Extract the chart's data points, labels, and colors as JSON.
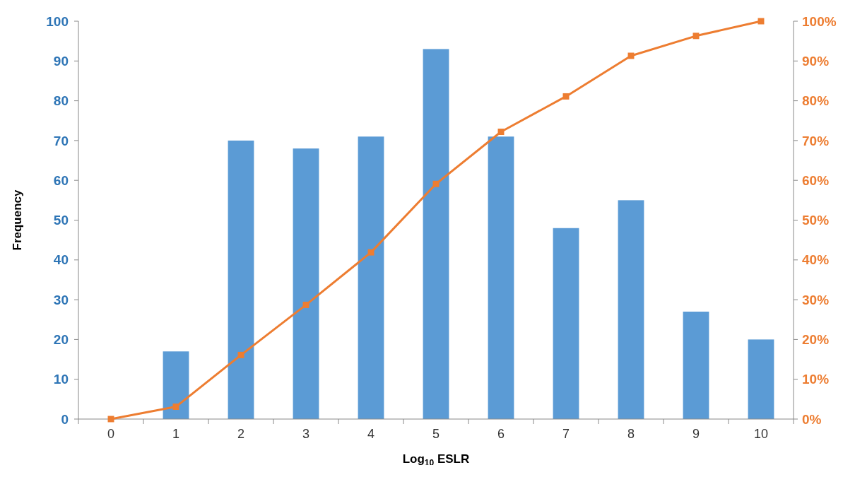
{
  "chart_data": {
    "type": "bar",
    "xlabel": "Log$_{10}$ ESLR",
    "ylabel": "Frequency",
    "categories": [
      "0",
      "1",
      "2",
      "3",
      "4",
      "5",
      "6",
      "7",
      "8",
      "9",
      "10"
    ],
    "series": [
      {
        "color": "#5b9bd5",
        "values": [
          0,
          17,
          70,
          68,
          71,
          93,
          71,
          48,
          55,
          27,
          20
        ]
      },
      {
        "type": "line",
        "axis": "y2",
        "color": "#ed7d31",
        "marker": "square",
        "values": [
          0,
          3.1,
          16.1,
          28.7,
          41.9,
          59.1,
          72.2,
          81.1,
          91.3,
          96.3,
          100
        ]
      }
    ],
    "ylim": [
      0,
      100
    ],
    "yticks": [
      0,
      10,
      20,
      30,
      40,
      50,
      60,
      70,
      80,
      90,
      100
    ],
    "y2lim": [
      0,
      100
    ],
    "y2ticks": [
      {
        "value": 0,
        "label": "0%"
      },
      {
        "value": 10,
        "label": "10%"
      },
      {
        "value": 20,
        "label": "20%"
      },
      {
        "value": 30,
        "label": "30%"
      },
      {
        "value": 40,
        "label": "40%"
      },
      {
        "value": 50,
        "label": "50%"
      },
      {
        "value": 60,
        "label": "60%"
      },
      {
        "value": 70,
        "label": "70%"
      },
      {
        "value": 80,
        "label": "80%"
      },
      {
        "value": 90,
        "label": "90%"
      },
      {
        "value": 100,
        "label": "100%"
      }
    ],
    "grid": false
  }
}
